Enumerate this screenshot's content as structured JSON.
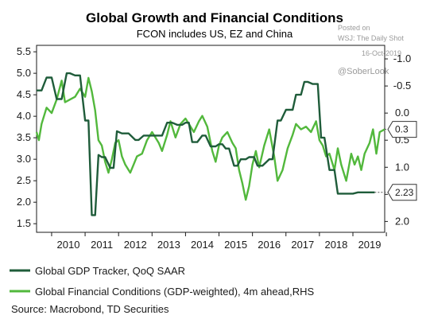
{
  "watermark": {
    "line1": "Posted on",
    "line2": "WSJ: The Daily Shot",
    "line3": "16-Oct-2019",
    "handle": "@SoberLook"
  },
  "colors": {
    "gdp": "#1f5c3a",
    "fcon": "#52b83c",
    "axis": "#1a1a1a",
    "grid": "#cfcfcf"
  },
  "chart_data": {
    "type": "line",
    "title": "Global Growth and Financial Conditions",
    "subtitle": "FCON includes US, EZ and China",
    "source": "Source: Macrobond, TD Securities",
    "x_ticks": [
      "2010",
      "2011",
      "2012",
      "2013",
      "2014",
      "2015",
      "2016",
      "2017",
      "2018",
      "2019"
    ],
    "xlim": [
      2009.55,
      2019.95
    ],
    "y_left": {
      "ticks": [
        "1.5",
        "2.0",
        "2.5",
        "3.0",
        "3.5",
        "4.0",
        "4.5",
        "5.0",
        "5.5"
      ],
      "lim": [
        1.3,
        5.65
      ]
    },
    "y_right": {
      "ticks": [
        "2.0",
        "1.5",
        "1.0",
        "0.5",
        "0.0",
        "-0.5",
        "-1.0"
      ],
      "lim": [
        2.2,
        -1.25
      ],
      "inverted": true
    },
    "series": [
      {
        "name": "Global GDP Tracker, QoQ SAAR",
        "axis": "left",
        "end_label": "2.23",
        "x": [
          2009.55,
          2009.7,
          2009.85,
          2010.0,
          2010.15,
          2010.3,
          2010.45,
          2010.55,
          2010.7,
          2010.85,
          2011.0,
          2011.1,
          2011.2,
          2011.3,
          2011.4,
          2011.5,
          2011.6,
          2011.75,
          2011.85,
          2011.95,
          2012.1,
          2012.3,
          2012.5,
          2012.6,
          2012.75,
          2012.9,
          2013.1,
          2013.3,
          2013.45,
          2013.6,
          2013.75,
          2013.9,
          2014.0,
          2014.1,
          2014.2,
          2014.35,
          2014.5,
          2014.6,
          2014.75,
          2014.9,
          2015.0,
          2015.1,
          2015.2,
          2015.3,
          2015.45,
          2015.55,
          2015.65,
          2015.8,
          2015.9,
          2016.05,
          2016.15,
          2016.3,
          2016.5,
          2016.6,
          2016.75,
          2016.85,
          2017.0,
          2017.1,
          2017.2,
          2017.3,
          2017.45,
          2017.55,
          2017.65,
          2017.8,
          2017.95,
          2018.05,
          2018.15,
          2018.3,
          2018.45,
          2018.55,
          2018.7,
          2018.85,
          2019.0,
          2019.15,
          2019.3,
          2019.45,
          2019.65
        ],
        "values": [
          4.6,
          4.6,
          4.9,
          4.9,
          4.4,
          4.4,
          5.0,
          5.0,
          4.95,
          4.95,
          3.9,
          3.9,
          1.7,
          1.7,
          3.1,
          3.05,
          3.05,
          2.8,
          2.8,
          3.65,
          3.6,
          3.6,
          3.45,
          3.45,
          3.55,
          3.55,
          3.55,
          3.55,
          3.85,
          3.85,
          3.8,
          3.8,
          3.85,
          3.85,
          3.4,
          3.4,
          3.55,
          3.55,
          3.3,
          3.3,
          3.35,
          3.35,
          3.25,
          3.25,
          2.85,
          2.85,
          3.0,
          3.0,
          3.05,
          3.05,
          2.85,
          2.85,
          3.0,
          3.0,
          3.9,
          3.9,
          4.15,
          4.15,
          4.15,
          4.5,
          4.5,
          4.8,
          4.8,
          4.75,
          4.75,
          3.5,
          3.5,
          2.75,
          2.75,
          2.2,
          2.2,
          2.2,
          2.2,
          2.23,
          2.23,
          2.23,
          2.23
        ]
      },
      {
        "name": "Global Financial Conditions (GDP-weighted), 4m ahead,RHS",
        "axis": "right",
        "end_label": "0.3",
        "x": [
          2009.55,
          2009.62,
          2009.7,
          2009.85,
          2010.0,
          2010.15,
          2010.3,
          2010.4,
          2010.55,
          2010.7,
          2010.85,
          2011.0,
          2011.1,
          2011.2,
          2011.3,
          2011.4,
          2011.5,
          2011.6,
          2011.7,
          2011.8,
          2011.9,
          2012.0,
          2012.1,
          2012.2,
          2012.35,
          2012.45,
          2012.55,
          2012.7,
          2012.85,
          2013.0,
          2013.1,
          2013.2,
          2013.3,
          2013.45,
          2013.55,
          2013.7,
          2013.85,
          2014.0,
          2014.1,
          2014.25,
          2014.4,
          2014.5,
          2014.65,
          2014.8,
          2014.9,
          2015.0,
          2015.1,
          2015.25,
          2015.4,
          2015.5,
          2015.6,
          2015.7,
          2015.8,
          2015.9,
          2016.0,
          2016.1,
          2016.2,
          2016.35,
          2016.5,
          2016.65,
          2016.75,
          2016.9,
          2017.05,
          2017.2,
          2017.3,
          2017.45,
          2017.6,
          2017.75,
          2017.9,
          2018.0,
          2018.1,
          2018.2,
          2018.3,
          2018.45,
          2018.55,
          2018.65,
          2018.8,
          2018.95,
          2019.05,
          2019.15,
          2019.25,
          2019.35,
          2019.5,
          2019.6,
          2019.7,
          2019.8,
          2019.95
        ],
        "values": [
          0.35,
          0.5,
          0.2,
          -0.1,
          0.0,
          -0.25,
          -0.6,
          -0.2,
          -0.25,
          -0.3,
          -0.45,
          -0.3,
          -0.65,
          -0.4,
          -0.05,
          0.5,
          0.6,
          0.9,
          1.1,
          0.85,
          0.55,
          0.5,
          0.8,
          0.95,
          1.1,
          0.95,
          0.8,
          0.75,
          0.5,
          0.35,
          0.45,
          0.55,
          0.7,
          0.4,
          0.15,
          0.45,
          0.2,
          0.1,
          0.2,
          0.35,
          0.15,
          0.05,
          0.25,
          0.7,
          0.9,
          0.6,
          0.45,
          0.35,
          0.55,
          0.65,
          1.05,
          1.3,
          1.6,
          1.35,
          0.95,
          0.7,
          1.0,
          0.6,
          0.3,
          0.8,
          1.25,
          1.05,
          0.65,
          0.4,
          0.2,
          0.3,
          0.25,
          0.35,
          0.15,
          0.5,
          0.6,
          0.8,
          0.75,
          1.05,
          0.65,
          0.95,
          1.25,
          0.75,
          0.95,
          0.8,
          1.05,
          0.75,
          0.55,
          0.3,
          0.75,
          0.35,
          0.3
        ]
      }
    ],
    "grid": false,
    "legend_position": "bottom-left"
  }
}
